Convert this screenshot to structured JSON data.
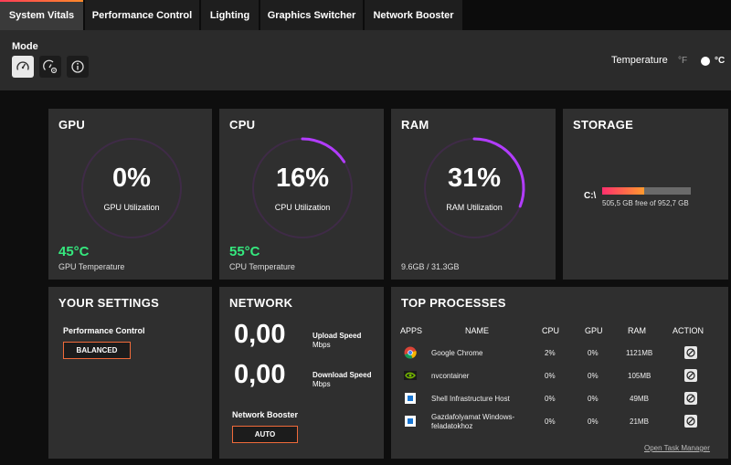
{
  "tabs": [
    {
      "label": "System Vitals",
      "active": true
    },
    {
      "label": "Performance Control",
      "active": false
    },
    {
      "label": "Lighting",
      "active": false
    },
    {
      "label": "Graphics Switcher",
      "active": false
    },
    {
      "label": "Network Booster",
      "active": false
    }
  ],
  "header": {
    "mode_label": "Mode",
    "mode_buttons": [
      "speedometer-icon",
      "settings-speedometer-icon",
      "info-icon"
    ],
    "temperature_label": "Temperature",
    "unit_f": "°F",
    "unit_c": "°C",
    "selected_unit": "°C"
  },
  "gpu": {
    "title": "GPU",
    "value": "0%",
    "percent": 0,
    "caption": "GPU Utilization",
    "temp": "45°C",
    "temp_caption": "GPU Temperature"
  },
  "cpu": {
    "title": "CPU",
    "value": "16%",
    "percent": 16,
    "caption": "CPU Utilization",
    "temp": "55°C",
    "temp_caption": "CPU Temperature"
  },
  "ram": {
    "title": "RAM",
    "value": "31%",
    "percent": 31,
    "caption": "RAM Utilization",
    "usage": "9.6GB / 31.3GB"
  },
  "storage": {
    "title": "STORAGE",
    "drive": "C:\\",
    "used_fraction": 0.47,
    "free_text": "505,5 GB free of 952,7 GB"
  },
  "settings": {
    "title": "YOUR SETTINGS",
    "perf_label": "Performance Control",
    "perf_value": "BALANCED"
  },
  "network": {
    "title": "NETWORK",
    "upload_value": "0,00",
    "upload_label": "Upload Speed",
    "upload_unit": "Mbps",
    "download_value": "0,00",
    "download_label": "Download Speed",
    "download_unit": "Mbps",
    "booster_label": "Network Booster",
    "booster_value": "AUTO"
  },
  "processes": {
    "title": "TOP PROCESSES",
    "columns": [
      "APPS",
      "NAME",
      "CPU",
      "GPU",
      "RAM",
      "ACTION"
    ],
    "rows": [
      {
        "icon": "chrome-icon",
        "name": "Google Chrome",
        "cpu": "2%",
        "gpu": "0%",
        "ram": "1121MB"
      },
      {
        "icon": "nvidia-icon",
        "name": "nvcontainer",
        "cpu": "0%",
        "gpu": "0%",
        "ram": "105MB"
      },
      {
        "icon": "window-app-icon",
        "name": "Shell Infrastructure Host",
        "cpu": "0%",
        "gpu": "0%",
        "ram": "49MB"
      },
      {
        "icon": "window-app-icon",
        "name": "Gazdafolyamat Windows-feladatokhoz",
        "cpu": "0%",
        "gpu": "0%",
        "ram": "21MB"
      }
    ],
    "task_manager_link": "Open Task Manager"
  },
  "colors": {
    "accent_start": "#ff3d57",
    "accent_end": "#ff8a2a",
    "temp_green": "#35e87e",
    "arc_purple": "#b23cff",
    "card_bg": "#2f2f2f"
  }
}
